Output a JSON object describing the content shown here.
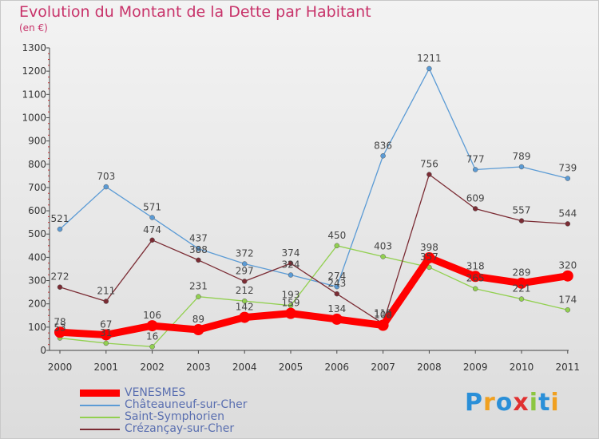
{
  "title": "Evolution du Montant de la Dette par Habitant",
  "unit_label": "(en €)",
  "logo": {
    "text": "Proxiti",
    "letters": [
      {
        "ch": "P",
        "color": "#2a8fd8"
      },
      {
        "ch": "r",
        "color": "#f0a020"
      },
      {
        "ch": "o",
        "color": "#2a8fd8"
      },
      {
        "ch": "x",
        "color": "#e03030"
      },
      {
        "ch": "i",
        "color": "#8cc63f"
      },
      {
        "ch": "t",
        "color": "#2a8fd8"
      },
      {
        "ch": "i",
        "color": "#f0a020"
      }
    ]
  },
  "chart_data": {
    "type": "line",
    "x": [
      "2000",
      "2001",
      "2002",
      "2003",
      "2004",
      "2005",
      "2006",
      "2007",
      "2008",
      "2009",
      "2010",
      "2011"
    ],
    "ylim": [
      0,
      1300
    ],
    "yticks": [
      0,
      100,
      200,
      300,
      400,
      500,
      600,
      700,
      800,
      900,
      1000,
      1100,
      1200,
      1300
    ],
    "grid": false,
    "legend": "bottom-left",
    "series": [
      {
        "name": "Châteauneuf-sur-Cher",
        "color": "#5b9bd5",
        "values": [
          521,
          703,
          571,
          437,
          372,
          324,
          274,
          836,
          1211,
          777,
          789,
          739
        ]
      },
      {
        "name": "Saint-Symphorien",
        "color": "#92d050",
        "values": [
          53,
          31,
          16,
          231,
          212,
          193,
          450,
          403,
          357,
          265,
          221,
          174
        ]
      },
      {
        "name": "Crézançay-sur-Cher",
        "color": "#7b2c34",
        "values": [
          272,
          211,
          474,
          388,
          297,
          374,
          243,
          115,
          756,
          609,
          557,
          544
        ]
      },
      {
        "name": "VENESMES",
        "color": "#ff0000",
        "values": [
          78,
          67,
          106,
          89,
          142,
          159,
          134,
          108,
          398,
          318,
          289,
          320
        ]
      }
    ],
    "legend_order": [
      "VENESMES",
      "Châteauneuf-sur-Cher",
      "Saint-Symphorien",
      "Crézançay-sur-Cher"
    ]
  }
}
